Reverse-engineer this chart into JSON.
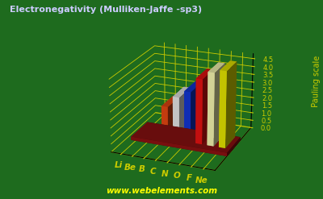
{
  "title": "Electronegativity (Mulliken-Jaffe -sp3)",
  "ylabel": "Pauling scale",
  "watermark": "www.webelements.com",
  "bg_color": "#1e6b1e",
  "elements": [
    "Li",
    "Be",
    "B",
    "C",
    "N",
    "O",
    "F",
    "Ne"
  ],
  "values": [
    0.05,
    0.05,
    2.04,
    2.75,
    3.2,
    4.1,
    4.6,
    4.8
  ],
  "bar_colors": [
    "#9988cc",
    "#9988cc",
    "#dd4411",
    "#dddddd",
    "#1133cc",
    "#dd1111",
    "#eeeeaa",
    "#dddd00"
  ],
  "bar_highlight": [
    "#bb99ff",
    "#bb99ff",
    "#ff7744",
    "#ffffff",
    "#4466ff",
    "#ff4444",
    "#ffffcc",
    "#ffff44"
  ],
  "bar_shadow": [
    "#553399",
    "#553399",
    "#882200",
    "#999999",
    "#001188",
    "#880000",
    "#aaaa55",
    "#aaaa00"
  ],
  "base_color": "#881111",
  "base_highlight": "#aa3333",
  "grid_color": "#cccc00",
  "axis_color": "#cccc00",
  "text_color": "#cccc00",
  "title_color": "#ccccff",
  "ylim": [
    0.0,
    4.8
  ],
  "ytick_vals": [
    0.0,
    0.5,
    1.0,
    1.5,
    2.0,
    2.5,
    3.0,
    3.5,
    4.0,
    4.5
  ],
  "dot_color": "#9988cc"
}
